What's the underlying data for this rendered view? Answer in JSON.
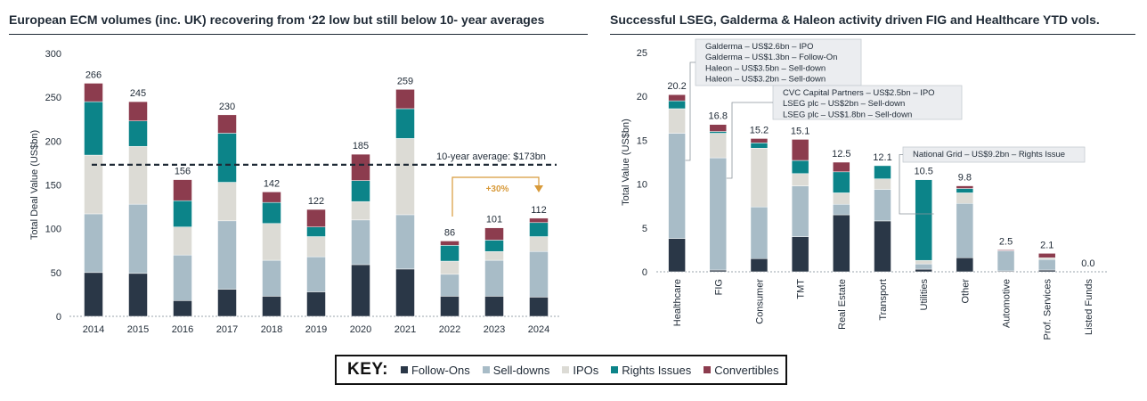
{
  "colors": {
    "follow_ons": "#2a3747",
    "sell_downs": "#a8bcc7",
    "ipos": "#dcdbd5",
    "rights_issues": "#0c8489",
    "convertibles": "#8c3c4e",
    "annotation_orange": "#d89a3a"
  },
  "key": {
    "title": "KEY:",
    "items": [
      {
        "label": "Follow-Ons",
        "color": "#2a3747"
      },
      {
        "label": "Sell-downs",
        "color": "#a8bcc7"
      },
      {
        "label": "IPOs",
        "color": "#dcdbd5"
      },
      {
        "label": "Rights Issues",
        "color": "#0c8489"
      },
      {
        "label": "Convertibles",
        "color": "#8c3c4e"
      }
    ]
  },
  "chart_data": [
    {
      "type": "bar",
      "stacked": true,
      "title": "European ECM volumes (inc. UK) recovering from ‘22 low but still below 10- year averages",
      "xlabel": "",
      "ylabel": "Total Deal Value (US$bn)",
      "ylim": [
        0,
        300
      ],
      "yticks": [
        0,
        50,
        100,
        150,
        200,
        250,
        300
      ],
      "categories": [
        "2014",
        "2015",
        "2016",
        "2017",
        "2018",
        "2019",
        "2020",
        "2021",
        "2022",
        "2023",
        "2024"
      ],
      "series": [
        {
          "name": "Follow-Ons",
          "values": [
            50,
            49,
            18,
            31,
            23,
            28,
            59,
            54,
            23,
            23,
            22
          ]
        },
        {
          "name": "Sell-downs",
          "values": [
            67,
            79,
            52,
            78,
            41,
            40,
            51,
            62,
            25,
            41,
            52
          ]
        },
        {
          "name": "IPOs",
          "values": [
            67,
            66,
            32,
            44,
            42,
            23,
            21,
            87,
            15,
            10,
            17
          ]
        },
        {
          "name": "Rights Issues",
          "values": [
            61,
            29,
            30,
            56,
            24,
            11,
            24,
            34,
            18,
            13,
            16
          ]
        },
        {
          "name": "Convertibles",
          "values": [
            21,
            22,
            24,
            21,
            12,
            20,
            30,
            22,
            5,
            14,
            5
          ]
        }
      ],
      "totals": [
        "266",
        "245",
        "156",
        "230",
        "142",
        "122",
        "185",
        "259",
        "86",
        "101",
        "112"
      ],
      "average_line": {
        "value": 173,
        "label": "10-year average: $173bn"
      },
      "growth_annotation": "+30%"
    },
    {
      "type": "bar",
      "stacked": true,
      "title": "Successful LSEG, Galderma & Haleon activity driven FIG and Healthcare YTD vols.",
      "xlabel": "",
      "ylabel": "Total Value (US$bn)",
      "ylim": [
        0,
        25
      ],
      "yticks": [
        0,
        5,
        10,
        15,
        20,
        25
      ],
      "categories": [
        "Healthcare",
        "FIG",
        "Consumer",
        "TMT",
        "Real Estate",
        "Transport",
        "Utilities",
        "Other",
        "Automotive",
        "Prof. Services",
        "Listed Funds"
      ],
      "series": [
        {
          "name": "Follow-Ons",
          "values": [
            3.8,
            0.2,
            1.5,
            4.0,
            6.5,
            5.8,
            0.3,
            1.6,
            0.1,
            0.2,
            0.0
          ]
        },
        {
          "name": "Sell-downs",
          "values": [
            12.0,
            12.8,
            5.9,
            5.8,
            1.2,
            3.6,
            0.6,
            6.2,
            2.3,
            1.2,
            0.0
          ]
        },
        {
          "name": "IPOs",
          "values": [
            2.8,
            2.8,
            6.7,
            1.4,
            1.3,
            1.2,
            0.4,
            1.2,
            0.0,
            0.2,
            0.0
          ]
        },
        {
          "name": "Rights Issues",
          "values": [
            0.9,
            0.2,
            0.6,
            1.5,
            2.4,
            1.5,
            9.2,
            0.5,
            0.0,
            0.0,
            0.0
          ]
        },
        {
          "name": "Convertibles",
          "values": [
            0.7,
            0.8,
            0.5,
            2.4,
            1.1,
            0.0,
            0.0,
            0.3,
            0.1,
            0.5,
            0.0
          ]
        }
      ],
      "totals": [
        "20.2",
        "16.8",
        "15.2",
        "15.1",
        "12.5",
        "12.1",
        "10.5",
        "9.8",
        "2.5",
        "2.1",
        "0.0"
      ],
      "callouts": [
        {
          "target": "Healthcare",
          "lines": [
            "Galderma – US$2.6bn – IPO",
            "Galderma – US$1.3bn – Follow-On",
            "Haleon – US$3.5bn – Sell-down",
            "Haleon – US$3.2bn – Sell-down"
          ]
        },
        {
          "target": "FIG",
          "lines": [
            "CVC Capital Partners – US$2.5bn – IPO",
            "LSEG plc – US$2bn – Sell-down",
            "LSEG plc – US$1.8bn – Sell-down"
          ]
        },
        {
          "target": "Utilities",
          "lines": [
            "National Grid – US$9.2bn – Rights Issue"
          ]
        }
      ]
    }
  ]
}
